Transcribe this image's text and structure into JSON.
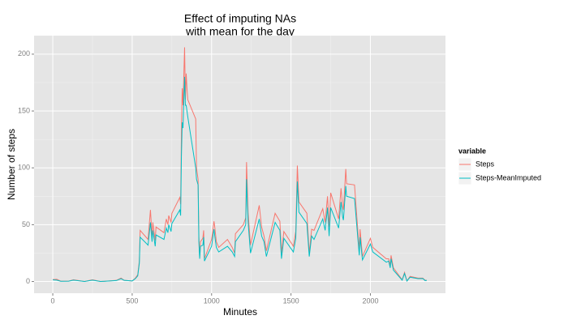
{
  "chart_data": {
    "type": "line",
    "title": [
      "Effect of imputing NAs",
      "with mean for the day"
    ],
    "x_label": "Minutes",
    "y_label": "Number of steps",
    "legend_title": "variable",
    "legend_position": "right",
    "grid": true,
    "xlim": [
      -117.75,
      2472.75
    ],
    "xticks": [
      0,
      500,
      1000,
      1500,
      2000
    ],
    "ylim": [
      -10.3,
      216.3
    ],
    "yticks": [
      0,
      50,
      100,
      150,
      200
    ],
    "x": [
      0,
      25,
      50,
      100,
      130,
      200,
      250,
      300,
      400,
      430,
      450,
      500,
      520,
      535,
      545,
      550,
      600,
      615,
      625,
      630,
      645,
      650,
      700,
      715,
      725,
      730,
      745,
      750,
      800,
      805,
      810,
      815,
      820,
      830,
      835,
      840,
      845,
      850,
      900,
      905,
      915,
      920,
      925,
      930,
      945,
      950,
      955,
      1000,
      1015,
      1020,
      1030,
      1045,
      1100,
      1130,
      1145,
      1150,
      1200,
      1215,
      1220,
      1225,
      1230,
      1245,
      1300,
      1315,
      1330,
      1345,
      1400,
      1430,
      1440,
      1455,
      1515,
      1530,
      1540,
      1550,
      1600,
      1615,
      1630,
      1645,
      1700,
      1715,
      1730,
      1740,
      1750,
      1800,
      1815,
      1825,
      1830,
      1845,
      1850,
      1900,
      1930,
      1935,
      1950,
      2000,
      2015,
      2100,
      2115,
      2125,
      2130,
      2145,
      2200,
      2215,
      2230,
      2250,
      2300,
      2330,
      2345,
      2355
    ],
    "series": [
      {
        "name": "Steps",
        "color": "#F8766D",
        "values": [
          1.7,
          2,
          0.3,
          0.3,
          1.5,
          0,
          1.5,
          0,
          1,
          3,
          1,
          0.5,
          3,
          6,
          18,
          45,
          37,
          63,
          40,
          52,
          36,
          48,
          43,
          55,
          50,
          58,
          52,
          60,
          74,
          68,
          130,
          170,
          155,
          206,
          160,
          183,
          170,
          160,
          143,
          100,
          90,
          40,
          22,
          35,
          38,
          45,
          20,
          37,
          53,
          48,
          35,
          30,
          37,
          30,
          25,
          42,
          50,
          56,
          105,
          83,
          60,
          32,
          67,
          48,
          40,
          27,
          60,
          53,
          25,
          44,
          31,
          44,
          102,
          70,
          60,
          25,
          46,
          45,
          64,
          52,
          75,
          48,
          78,
          55,
          82,
          66,
          63,
          99,
          86,
          85,
          27,
          46,
          22,
          38,
          30,
          20,
          20,
          14,
          23,
          12,
          1.5,
          8,
          0.5,
          4.5,
          3,
          3,
          1,
          1
        ]
      },
      {
        "name": "Steps-MeanImputed",
        "color": "#00BFC4",
        "values": [
          1.5,
          1.2,
          0.2,
          0.3,
          1.2,
          0,
          1.2,
          0,
          0.8,
          2.5,
          1,
          0.5,
          2.5,
          5,
          16,
          39,
          32,
          52,
          35,
          45,
          31,
          41,
          37,
          47,
          43,
          50,
          44,
          51,
          63,
          58,
          110,
          140,
          135,
          180,
          155,
          155,
          150,
          145,
          100,
          90,
          85,
          35,
          20,
          31,
          32,
          39,
          18,
          31,
          46,
          40,
          30,
          26,
          31,
          26,
          22,
          35,
          45,
          50,
          90,
          70,
          52,
          25,
          55,
          40,
          35,
          22,
          52,
          45,
          20,
          38,
          26,
          38,
          88,
          61,
          51,
          22,
          40,
          37,
          55,
          45,
          65,
          40,
          65,
          47,
          70,
          57,
          54,
          84,
          75,
          73,
          23,
          39,
          19,
          33,
          26,
          17,
          18,
          12,
          20,
          10,
          1.2,
          7,
          0.4,
          3.8,
          2.5,
          2.6,
          0.8,
          1
        ]
      }
    ]
  }
}
